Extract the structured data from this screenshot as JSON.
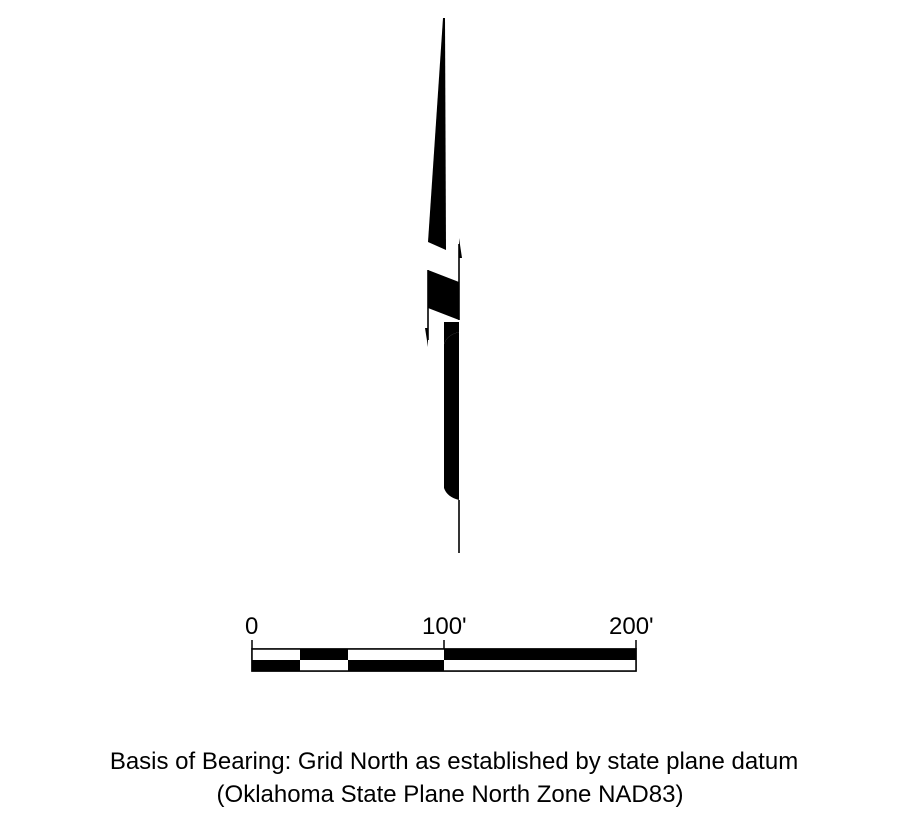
{
  "scale_bar": {
    "labels": [
      "0",
      "100'",
      "200'"
    ],
    "units": "feet",
    "range": [
      0,
      200
    ]
  },
  "north_arrow": {
    "icon": "north-arrow-icon",
    "reference": "grid-north"
  },
  "basis_of_bearing": {
    "line1": "Basis of Bearing: Grid North as established by state plane datum",
    "line2": "(Oklahoma State Plane North Zone NAD83)"
  },
  "colors": {
    "ink": "#000000",
    "paper": "#ffffff"
  }
}
